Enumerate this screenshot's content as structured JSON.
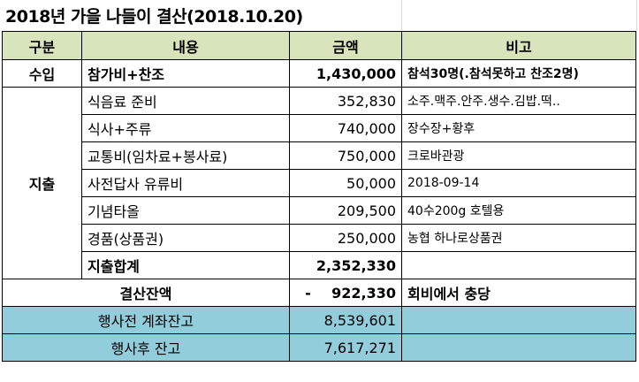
{
  "title": "2018년 가을 나들이 결산(2018.10.20)",
  "headers": {
    "category": "구분",
    "content": "내용",
    "amount": "금액",
    "note": "비고"
  },
  "income": {
    "label": "수입",
    "item": "참가비+찬조",
    "amount": "1,430,000",
    "note": "참석30명(.참석못하고 찬조2명)"
  },
  "expense": {
    "label": "지출",
    "items": [
      {
        "item": "식음료 준비",
        "amount": "352,830",
        "note": "소주.맥주.안주.생수.김밥.떡.."
      },
      {
        "item": "식사+주류",
        "amount": "740,000",
        "note": "장수장+황후"
      },
      {
        "item": "교통비(임차료+봉사료)",
        "amount": "750,000",
        "note": "크로바관광"
      },
      {
        "item": "사전답사 유류비",
        "amount": "50,000",
        "note": "2018-09-14"
      },
      {
        "item": "기념타올",
        "amount": "209,500",
        "note": "40수200g 호텔용"
      },
      {
        "item": "경품(상품권)",
        "amount": "250,000",
        "note": "농협 하나로상품권"
      }
    ],
    "total_label": "지출합계",
    "total_amount": "2,352,330",
    "total_note": ""
  },
  "balance": {
    "label": "결산잔액",
    "sign": "-",
    "amount": "922,330",
    "note": "회비에서 충당"
  },
  "accounts": [
    {
      "label": "행사전 계좌잔고",
      "amount": "8,539,601",
      "note": ""
    },
    {
      "label": "행사후 잔고",
      "amount": "7,617,271",
      "note": ""
    }
  ],
  "colors": {
    "header_bg": "#d8e4bc",
    "account_bg": "#92cddc"
  }
}
